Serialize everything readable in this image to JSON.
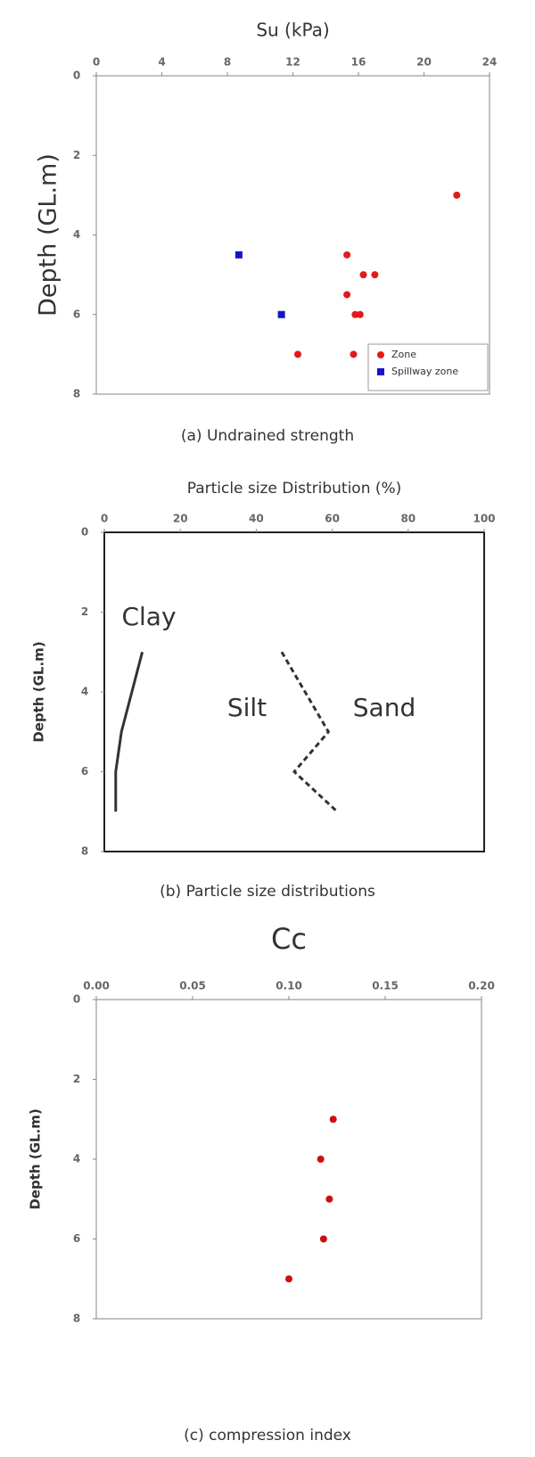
{
  "chart_data": [
    {
      "type": "scatter",
      "title": "Su (kPa)",
      "ylabel": "Depth (GL.m)",
      "caption": "(a) Undrained strength",
      "xlim": [
        0,
        24
      ],
      "xticks": [
        0,
        4,
        8,
        12,
        16,
        20,
        24
      ],
      "ylim": [
        0,
        8
      ],
      "yticks": [
        0,
        2,
        4,
        6,
        8
      ],
      "y_inverted": true,
      "x_axis_position": "top",
      "legend": "lower right",
      "series": [
        {
          "name": "Zone",
          "color": "#e31a1c",
          "marker": "circle",
          "x": [
            22,
            15.3,
            16.3,
            17,
            15.3,
            15.8,
            16.1,
            12.3,
            15.7
          ],
          "values": [
            3,
            4.5,
            5,
            5,
            5.5,
            6,
            6,
            7,
            7
          ]
        },
        {
          "name": "Spillway zone",
          "color": "#1515c8",
          "marker": "square",
          "x": [
            8.7,
            11.3
          ],
          "values": [
            4.5,
            6
          ]
        }
      ]
    },
    {
      "type": "line",
      "title": "Particle size Distribution (%)",
      "ylabel": "Depth (GL.m)",
      "caption": "(b) Particle size distributions",
      "xlim": [
        0,
        100
      ],
      "xticks": [
        0,
        20,
        40,
        60,
        80,
        100
      ],
      "ylim": [
        0,
        8
      ],
      "yticks": [
        0,
        2,
        4,
        6,
        8
      ],
      "y_inverted": true,
      "x_axis_position": "top",
      "series": [
        {
          "color": "#333333",
          "dashed": false,
          "x": [
            10,
            4.5,
            3,
            3
          ],
          "values": [
            3,
            5,
            6,
            7
          ]
        },
        {
          "color": "#333333",
          "dashed": true,
          "x": [
            46.7,
            59,
            50,
            61.3
          ],
          "values": [
            3,
            5,
            6,
            7
          ]
        }
      ],
      "annotations": [
        "Clay",
        "Silt",
        "Sand"
      ]
    },
    {
      "type": "scatter",
      "title": "Cc",
      "ylabel": "Depth (GL.m)",
      "caption": "(c) compression index",
      "xlim": [
        0,
        0.2
      ],
      "xticks": [
        {
          "value": 0,
          "label": "0.00"
        },
        0.05,
        {
          "value": 0.1,
          "label": "0.10"
        },
        0.15,
        {
          "value": 0.2,
          "label": "0.20"
        }
      ],
      "ylim": [
        0,
        8
      ],
      "yticks": [
        0,
        2,
        4,
        6,
        8
      ],
      "y_inverted": true,
      "x_axis_position": "top",
      "series": [
        {
          "color": "#cc1010",
          "marker": "circle",
          "x": [
            0.123,
            0.1165,
            0.121,
            0.118,
            0.1
          ],
          "values": [
            3,
            4,
            5,
            6,
            7
          ]
        }
      ]
    }
  ]
}
